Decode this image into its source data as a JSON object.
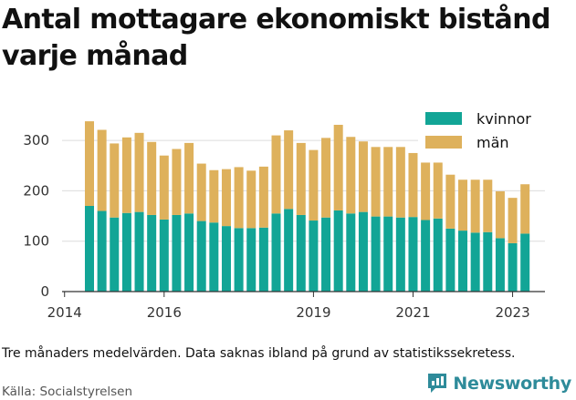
{
  "title": "Antal mottagare ekonomiskt bistånd varje månad",
  "caption": "Tre månaders medelvärden. Data saknas ibland på grund av statistikssekretess.",
  "source": "Källa: Socialstyrelsen",
  "brand": "Newsworthy",
  "colors": {
    "kvinnor": "#12a596",
    "man": "#deb15c",
    "brand": "#2e8b9a",
    "grid": "#dcdcdc"
  },
  "chart_data": {
    "type": "bar",
    "stacked": true,
    "x": [
      2014.5,
      2014.75,
      2015.0,
      2015.25,
      2015.5,
      2015.75,
      2016.0,
      2016.25,
      2016.5,
      2016.75,
      2017.0,
      2017.25,
      2017.5,
      2017.75,
      2018.0,
      2018.25,
      2018.5,
      2018.75,
      2019.0,
      2019.25,
      2019.5,
      2019.75,
      2020.0,
      2020.25,
      2020.5,
      2020.75,
      2021.0,
      2021.25,
      2021.5,
      2021.75,
      2022.0,
      2022.25,
      2022.5,
      2022.75,
      2023.0,
      2023.25
    ],
    "series": [
      {
        "name": "kvinnor",
        "color": "#12a596",
        "values": [
          170,
          160,
          147,
          156,
          158,
          152,
          143,
          152,
          155,
          140,
          137,
          130,
          126,
          126,
          127,
          155,
          164,
          152,
          141,
          147,
          161,
          155,
          158,
          149,
          149,
          147,
          148,
          142,
          145,
          125,
          121,
          117,
          118,
          106,
          96,
          115
        ]
      },
      {
        "name": "män",
        "color": "#deb15c",
        "values": [
          168,
          161,
          147,
          150,
          157,
          145,
          127,
          131,
          140,
          114,
          104,
          113,
          121,
          114,
          121,
          155,
          156,
          143,
          140,
          158,
          170,
          152,
          140,
          138,
          138,
          140,
          127,
          114,
          111,
          107,
          101,
          105,
          104,
          93,
          90,
          98
        ]
      }
    ],
    "xticks": [
      2014,
      2016,
      2019,
      2021,
      2023
    ],
    "yticks": [
      0,
      100,
      200,
      300
    ],
    "ylim": [
      0,
      340
    ],
    "grid": true,
    "legend": "top-right"
  }
}
